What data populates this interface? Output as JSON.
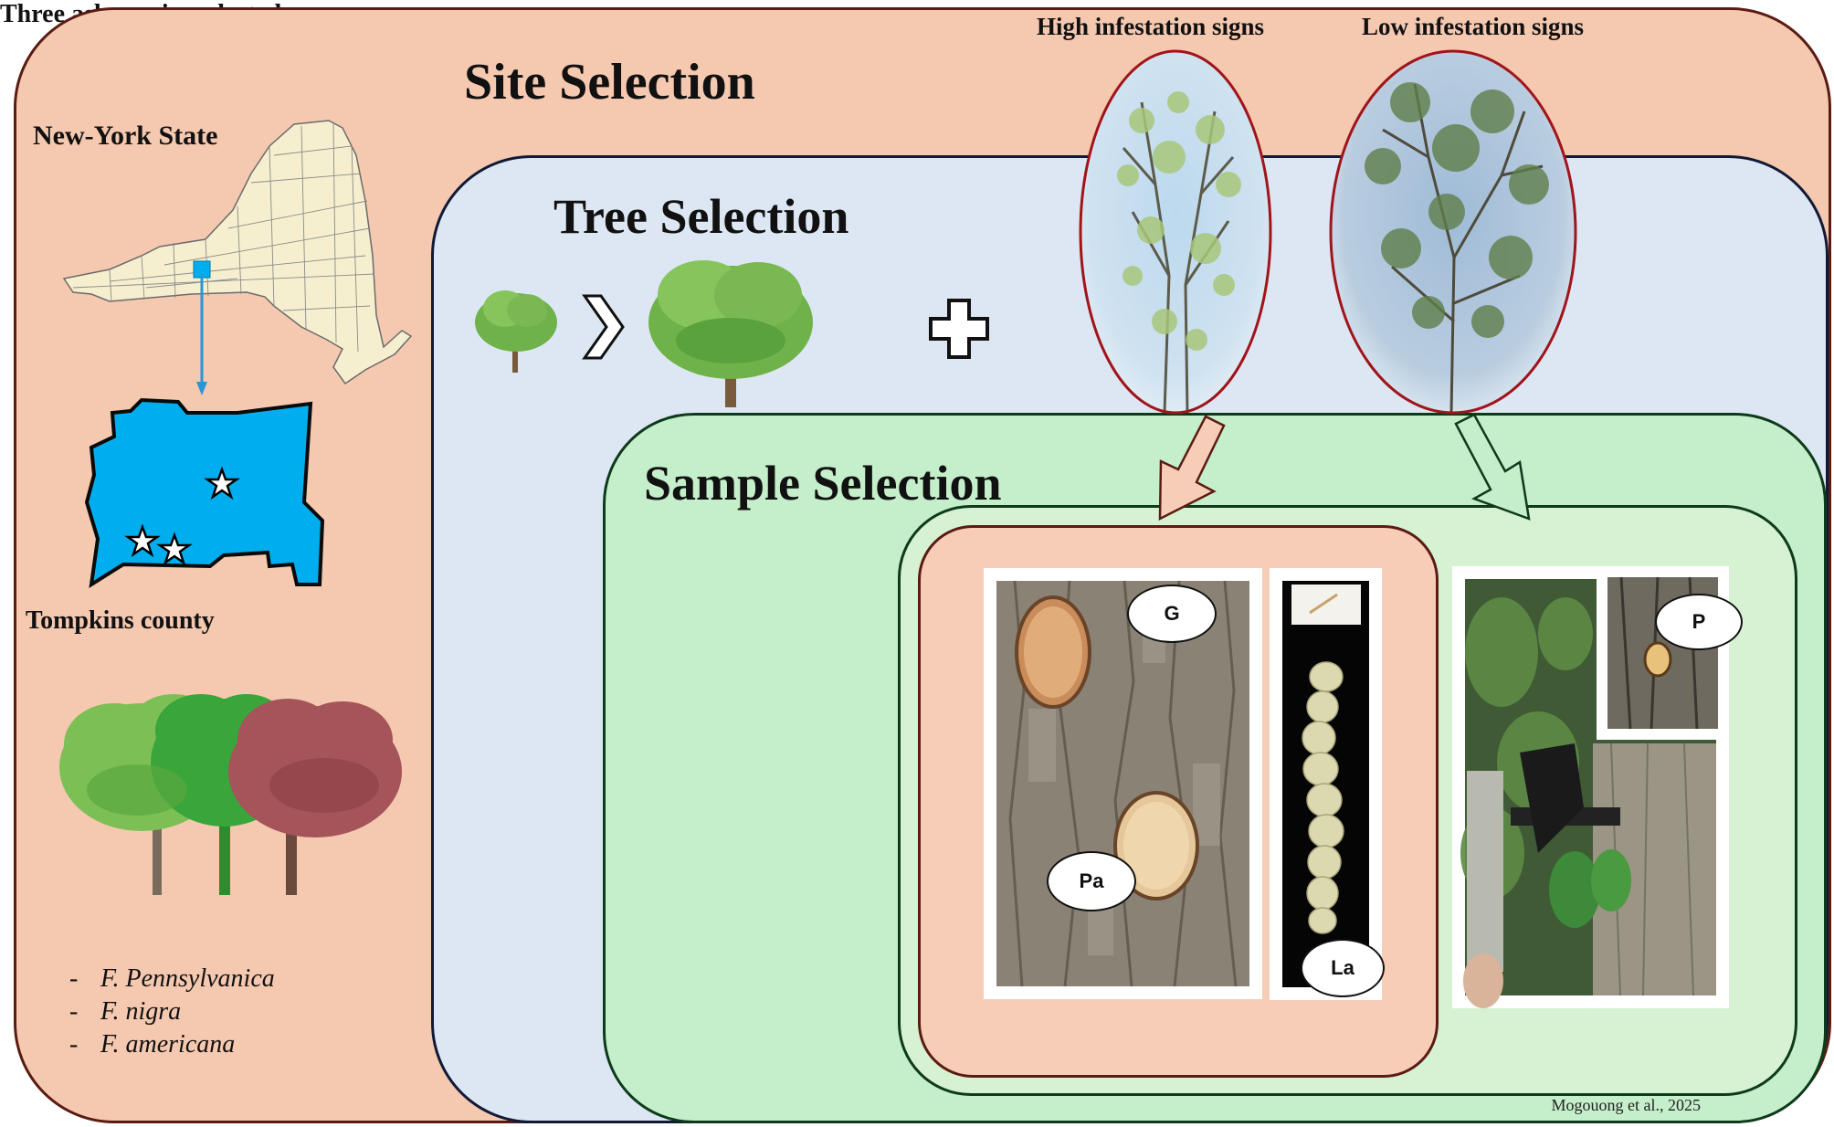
{
  "sections": {
    "site": {
      "title": "Site Selection"
    },
    "tree": {
      "title": "Tree Selection"
    },
    "sample": {
      "title": "Sample Selection"
    }
  },
  "map": {
    "state_label": "New-York State",
    "county_label": "Tompkins county",
    "state_color": "#f6efcf",
    "county_color": "#00aeef",
    "marker_color": "#00aeef"
  },
  "species": {
    "title": "Three ash species selected:",
    "items": [
      {
        "bullet": "-",
        "name": "F. Pennsylvanica"
      },
      {
        "bullet": "-",
        "name": "F. nigra"
      },
      {
        "bullet": "-",
        "name": "F. americana"
      }
    ]
  },
  "infestation": {
    "high_label": "High infestation signs",
    "low_label": "Low infestation signs"
  },
  "sample_labels": {
    "gallery": "G",
    "pupal_chamber": "Pa",
    "larva": "La",
    "phloem": "P"
  },
  "colors": {
    "site_bg": "#f5c8b0",
    "tree_bg": "#dde7f3",
    "sample_bg": "#c5efcb",
    "oval_border": "#a0141a",
    "arrow_fill": "#f7cdb8"
  },
  "credit": "Mogouong et al., 2025"
}
